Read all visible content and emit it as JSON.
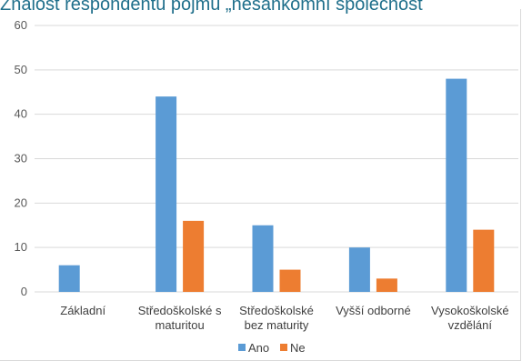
{
  "chart_data": {
    "type": "bar",
    "title": "Znalost respondentů pojmu „nesankomní společnost",
    "categories": [
      [
        "Základní"
      ],
      [
        "Středoškolské s",
        "maturitou"
      ],
      [
        "Středoškolské",
        "bez maturity"
      ],
      [
        "Vyšší odborné"
      ],
      [
        "Vysokoškolské",
        "vzdělání"
      ]
    ],
    "series": [
      {
        "name": "Ano",
        "color": "#5b9bd5",
        "values": [
          6,
          44,
          15,
          10,
          48
        ]
      },
      {
        "name": "Ne",
        "color": "#ed7d31",
        "values": [
          0,
          16,
          5,
          3,
          14
        ]
      }
    ],
    "ylim": [
      0,
      60
    ],
    "yticks": [
      0,
      10,
      20,
      30,
      40,
      50,
      60
    ],
    "grid": true,
    "legend": "bottom"
  }
}
